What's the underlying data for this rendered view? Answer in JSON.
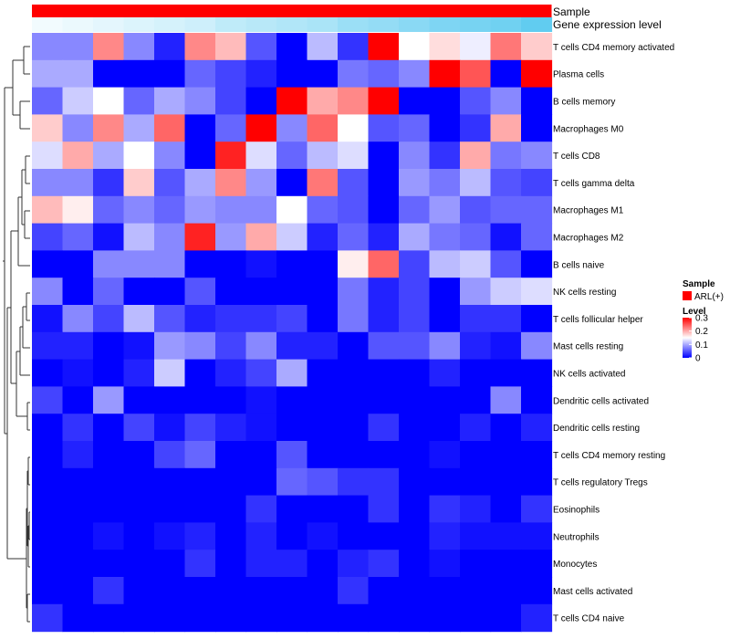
{
  "chart_data": {
    "type": "heatmap",
    "annotations": [
      {
        "name": "Sample",
        "color": "#ff0000"
      },
      {
        "name": "Gene expression level",
        "gradient": [
          "#f2fbfe",
          "#61ccf0"
        ]
      }
    ],
    "rows": [
      "T cells CD4 memory activated",
      "Plasma cells",
      "B cells memory",
      "Macrophages M0",
      "T cells CD8",
      "T cells gamma delta",
      "Macrophages M1",
      "Macrophages M2",
      "B cells naive",
      "NK cells resting",
      "T cells follicular helper",
      "Mast cells resting",
      "NK cells activated",
      "Dendritic cells activated",
      "Dendritic cells resting",
      "T cells CD4 memory resting",
      "T cells regulatory  Tregs",
      "Eosinophils",
      "Neutrophils",
      "Monocytes",
      "Mast cells activated",
      "T cells CD4 naive"
    ],
    "values": [
      [
        0.08,
        0.08,
        0.22,
        0.08,
        0.02,
        0.22,
        0.19,
        0.05,
        0.0,
        0.11,
        0.03,
        0.3,
        0.15,
        0.17,
        0.14,
        0.23,
        0.18
      ],
      [
        0.1,
        0.1,
        0.0,
        0.0,
        0.0,
        0.06,
        0.04,
        0.02,
        0.0,
        0.0,
        0.07,
        0.06,
        0.08,
        0.3,
        0.25,
        0.0,
        0.3
      ],
      [
        0.06,
        0.12,
        0.15,
        0.06,
        0.1,
        0.08,
        0.04,
        0.0,
        0.3,
        0.2,
        0.22,
        0.3,
        0.0,
        0.0,
        0.05,
        0.08,
        0.0
      ],
      [
        0.18,
        0.08,
        0.22,
        0.1,
        0.24,
        0.0,
        0.06,
        0.3,
        0.08,
        0.24,
        0.15,
        0.05,
        0.06,
        0.0,
        0.03,
        0.2,
        0.0
      ],
      [
        0.13,
        0.2,
        0.1,
        0.15,
        0.08,
        0.0,
        0.28,
        0.13,
        0.06,
        0.11,
        0.13,
        0.0,
        0.08,
        0.03,
        0.2,
        0.07,
        0.08
      ],
      [
        0.08,
        0.08,
        0.03,
        0.18,
        0.05,
        0.1,
        0.22,
        0.09,
        0.0,
        0.23,
        0.05,
        0.0,
        0.09,
        0.07,
        0.11,
        0.05,
        0.04
      ],
      [
        0.19,
        0.16,
        0.06,
        0.08,
        0.06,
        0.09,
        0.08,
        0.08,
        0.15,
        0.06,
        0.05,
        0.0,
        0.06,
        0.09,
        0.05,
        0.06,
        0.06
      ],
      [
        0.04,
        0.06,
        0.01,
        0.11,
        0.08,
        0.28,
        0.09,
        0.2,
        0.12,
        0.02,
        0.06,
        0.02,
        0.1,
        0.07,
        0.06,
        0.01,
        0.06
      ],
      [
        0.0,
        0.0,
        0.08,
        0.08,
        0.08,
        0.0,
        0.0,
        0.01,
        0.0,
        0.0,
        0.16,
        0.24,
        0.04,
        0.11,
        0.12,
        0.05,
        0.0
      ],
      [
        0.08,
        0.0,
        0.06,
        0.0,
        0.0,
        0.05,
        0.0,
        0.0,
        0.0,
        0.0,
        0.07,
        0.02,
        0.04,
        0.0,
        0.09,
        0.12,
        0.13
      ],
      [
        0.01,
        0.08,
        0.04,
        0.11,
        0.05,
        0.02,
        0.03,
        0.03,
        0.04,
        0.0,
        0.07,
        0.02,
        0.04,
        0.0,
        0.03,
        0.03,
        0.0
      ],
      [
        0.02,
        0.02,
        0.0,
        0.01,
        0.09,
        0.08,
        0.04,
        0.08,
        0.02,
        0.02,
        0.0,
        0.05,
        0.05,
        0.08,
        0.02,
        0.01,
        0.08
      ],
      [
        0.0,
        0.01,
        0.0,
        0.02,
        0.12,
        0.0,
        0.02,
        0.04,
        0.1,
        0.0,
        0.0,
        0.0,
        0.0,
        0.02,
        0.0,
        0.0,
        0.0
      ],
      [
        0.04,
        0.0,
        0.09,
        0.0,
        0.0,
        0.0,
        0.0,
        0.01,
        0.0,
        0.0,
        0.0,
        0.0,
        0.0,
        0.0,
        0.0,
        0.08,
        0.0
      ],
      [
        0.0,
        0.03,
        0.0,
        0.04,
        0.01,
        0.04,
        0.02,
        0.01,
        0.0,
        0.0,
        0.0,
        0.03,
        0.0,
        0.0,
        0.02,
        0.0,
        0.02
      ],
      [
        0.0,
        0.02,
        0.0,
        0.0,
        0.04,
        0.06,
        0.0,
        0.0,
        0.05,
        0.0,
        0.0,
        0.0,
        0.0,
        0.01,
        0.0,
        0.0,
        0.0
      ],
      [
        0.0,
        0.0,
        0.0,
        0.0,
        0.0,
        0.0,
        0.0,
        0.0,
        0.06,
        0.05,
        0.03,
        0.03,
        0.0,
        0.0,
        0.0,
        0.0,
        0.0
      ],
      [
        0.0,
        0.0,
        0.0,
        0.0,
        0.0,
        0.0,
        0.0,
        0.03,
        0.0,
        0.0,
        0.0,
        0.03,
        0.0,
        0.03,
        0.02,
        0.0,
        0.03
      ],
      [
        0.0,
        0.0,
        0.01,
        0.0,
        0.01,
        0.02,
        0.0,
        0.02,
        0.0,
        0.01,
        0.0,
        0.0,
        0.0,
        0.02,
        0.01,
        0.01,
        0.01
      ],
      [
        0.0,
        0.0,
        0.0,
        0.0,
        0.0,
        0.03,
        0.0,
        0.02,
        0.02,
        0.0,
        0.02,
        0.03,
        0.0,
        0.01,
        0.0,
        0.0,
        0.0
      ],
      [
        0.0,
        0.0,
        0.03,
        0.0,
        0.0,
        0.0,
        0.0,
        0.0,
        0.0,
        0.0,
        0.03,
        0.0,
        0.0,
        0.0,
        0.0,
        0.0,
        0.0
      ],
      [
        0.03,
        0.0,
        0.0,
        0.0,
        0.0,
        0.0,
        0.0,
        0.0,
        0.0,
        0.0,
        0.0,
        0.0,
        0.0,
        0.0,
        0.0,
        0.0,
        0.02
      ]
    ],
    "gradient_levels": [
      0.0,
      0.05,
      0.1,
      0.15,
      0.2,
      0.25,
      0.35,
      0.4,
      0.45,
      0.5,
      0.6,
      0.65,
      0.72,
      0.8,
      0.85,
      0.9,
      1.0
    ],
    "color_scale": {
      "low": "#0000ff",
      "mid": "#ffffff",
      "high": "#ff0000",
      "min": 0,
      "mid_value": 0.15,
      "max": 0.3
    },
    "legend": {
      "sample_title": "Sample",
      "sample_entry": "ARL(+)",
      "sample_color": "#ff0000",
      "level_title": "Level",
      "ticks": [
        0.3,
        0.2,
        0.1,
        0
      ],
      "tick_labels": [
        "0.3",
        "0.2",
        "0.1",
        "0"
      ]
    },
    "dendrogram": "row-clustering"
  }
}
